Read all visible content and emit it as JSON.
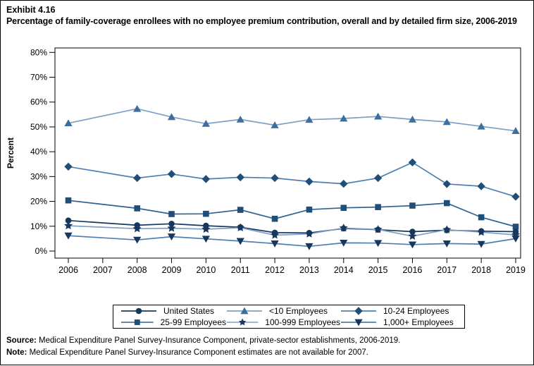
{
  "header": {
    "exhibit_label": "Exhibit 4.16",
    "title": "Percentage of family-coverage enrollees with no employee premium contribution, overall and by detailed firm size, 2006-2019"
  },
  "chart_data": {
    "type": "line",
    "title": "Percentage of family-coverage enrollees with no employee premium contribution, overall and by detailed firm size, 2006-2019",
    "xlabel": "",
    "ylabel": "Percent",
    "ylim": [
      0,
      80
    ],
    "ytick_step": 10,
    "ytick_suffix": "%",
    "grid": false,
    "legend_position": "bottom",
    "x_tick_labels": [
      "2006",
      "2007",
      "2008",
      "2009",
      "2010",
      "2011",
      "2012",
      "2013",
      "2014",
      "2015",
      "2016",
      "2017",
      "2018",
      "2019"
    ],
    "years_with_data": [
      2006,
      2008,
      2009,
      2010,
      2011,
      2012,
      2013,
      2014,
      2015,
      2016,
      2017,
      2018,
      2019
    ],
    "series": [
      {
        "name": "United States",
        "marker": "circle",
        "line_color": "#17375E",
        "marker_color": "#17375E",
        "values": [
          12.3,
          10.4,
          11.0,
          10.2,
          9.6,
          7.4,
          7.3,
          9.1,
          8.6,
          7.8,
          8.4,
          8.0,
          7.8
        ]
      },
      {
        "name": "<10 Employees",
        "marker": "triangle",
        "line_color": "#7DA0C4",
        "marker_color": "#3C6E9F",
        "values": [
          51.5,
          57.3,
          54.0,
          51.3,
          53.0,
          50.7,
          52.9,
          53.4,
          54.2,
          53.0,
          52.0,
          50.2,
          48.4
        ]
      },
      {
        "name": "10-24 Employees",
        "marker": "diamond",
        "line_color": "#4E7FAF",
        "marker_color": "#1F4E79",
        "values": [
          34.0,
          29.4,
          31.0,
          29.0,
          29.7,
          29.4,
          28.0,
          27.1,
          29.4,
          35.7,
          27.0,
          26.1,
          21.9
        ]
      },
      {
        "name": "25-99 Employees",
        "marker": "square",
        "line_color": "#31618F",
        "marker_color": "#1F4E79",
        "values": [
          20.4,
          17.2,
          14.9,
          15.0,
          16.6,
          13.0,
          16.7,
          17.4,
          17.7,
          18.3,
          19.3,
          13.6,
          9.8
        ]
      },
      {
        "name": "100-999 Employees",
        "marker": "star",
        "line_color": "#7DA0C4",
        "marker_color": "#17375E",
        "values": [
          10.2,
          9.0,
          9.2,
          8.8,
          9.4,
          6.4,
          6.9,
          9.3,
          8.7,
          6.0,
          8.6,
          7.6,
          6.5
        ]
      },
      {
        "name": "1,000+ Employees",
        "marker": "triangleDown",
        "line_color": "#4E7FAF",
        "marker_color": "#17375E",
        "values": [
          6.2,
          4.5,
          5.8,
          4.9,
          4.0,
          3.0,
          1.9,
          3.3,
          3.2,
          2.6,
          3.0,
          2.8,
          5.0
        ]
      }
    ]
  },
  "footer": {
    "source_label": "Source:",
    "source_text": "Medical Expenditure Panel Survey-Insurance Component, private-sector establishments, 2006-2019.",
    "note_label": "Note:",
    "note_text": "Medical Expenditure Panel Survey-Insurance Component estimates are not available for 2007."
  }
}
